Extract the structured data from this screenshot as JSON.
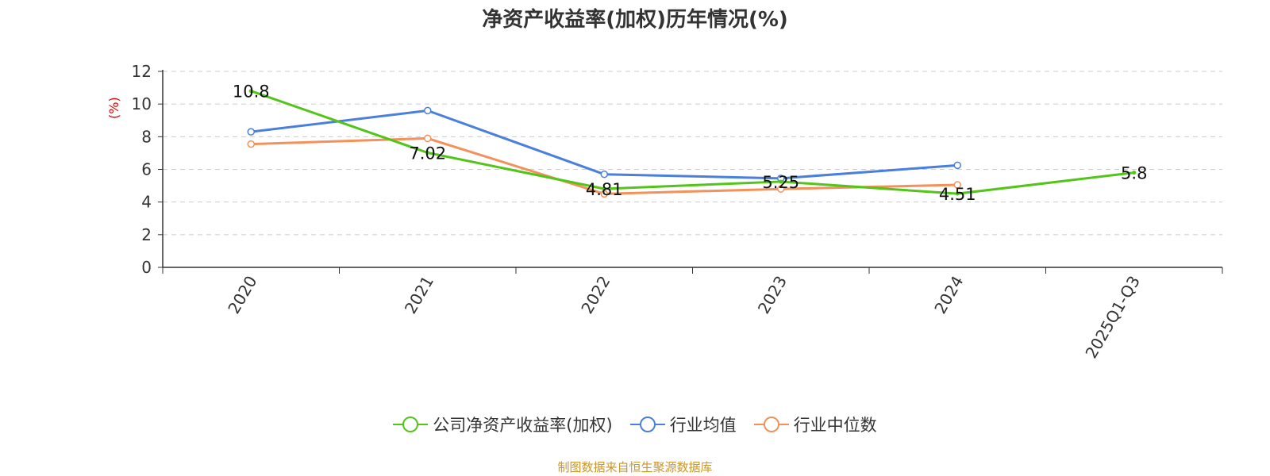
{
  "chart_data": {
    "type": "line",
    "title": "净资产收益率(加权)历年情况(%)",
    "ylabel": "(%)",
    "categories": [
      "2020",
      "2021",
      "2022",
      "2023",
      "2024",
      "2025Q1-Q3"
    ],
    "ylim": [
      0,
      12
    ],
    "yticks": [
      0,
      2,
      4,
      6,
      8,
      10,
      12
    ],
    "grid": true,
    "legend_position": "bottom",
    "series": [
      {
        "name": "公司净资产收益率(加权)",
        "color": "#52c41a",
        "values": [
          10.8,
          7.02,
          4.81,
          5.25,
          4.51,
          5.8
        ],
        "labels": [
          "10.8",
          "7.02",
          "4.81",
          "5.25",
          "4.51",
          "5.8"
        ]
      },
      {
        "name": "行业均值",
        "color": "#4a7fdc",
        "values": [
          8.3,
          9.6,
          5.7,
          5.45,
          6.25,
          null
        ]
      },
      {
        "name": "行业中位数",
        "color": "#f4905a",
        "values": [
          7.55,
          7.9,
          4.5,
          4.8,
          5.05,
          null
        ]
      }
    ]
  },
  "source": "制图数据来自恒生聚源数据库"
}
